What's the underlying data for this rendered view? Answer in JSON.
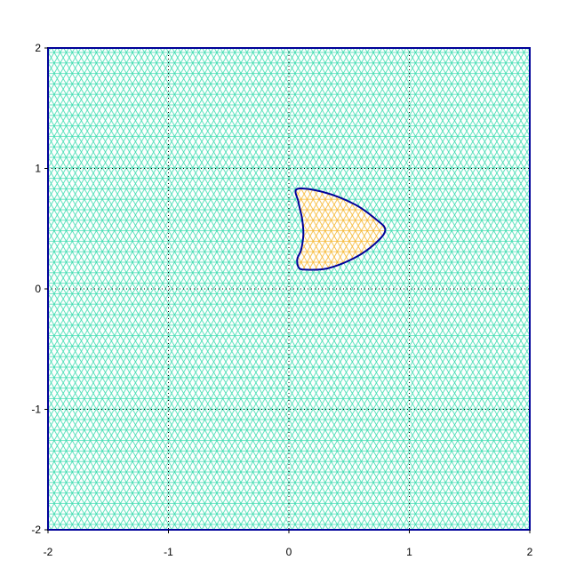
{
  "chart_data": {
    "type": "mesh",
    "title": "",
    "xlabel": "",
    "ylabel": "",
    "xlim": [
      -2,
      2
    ],
    "ylim": [
      -2,
      2
    ],
    "x_ticks": [
      "-2",
      "-1",
      "0",
      "1",
      "2"
    ],
    "y_ticks": [
      "-2",
      "-1",
      "0",
      "1",
      "2"
    ],
    "grid": true,
    "grid_style": "dotted",
    "outer_region": {
      "shape": "square",
      "x": [
        -2,
        2
      ],
      "y": [
        -2,
        2
      ],
      "mesh_color": "#3ddcb0",
      "mesh_spacing": 0.1
    },
    "inner_region": {
      "boundary": [
        [
          0.07,
          0.83
        ],
        [
          0.3,
          0.8
        ],
        [
          0.55,
          0.7
        ],
        [
          0.72,
          0.58
        ],
        [
          0.8,
          0.49
        ],
        [
          0.72,
          0.38
        ],
        [
          0.55,
          0.26
        ],
        [
          0.32,
          0.17
        ],
        [
          0.13,
          0.16
        ],
        [
          0.08,
          0.18
        ],
        [
          0.07,
          0.25
        ],
        [
          0.1,
          0.32
        ],
        [
          0.12,
          0.45
        ],
        [
          0.11,
          0.58
        ],
        [
          0.08,
          0.72
        ]
      ],
      "mesh_color": "#f5b731",
      "boundary_color": "#000099"
    },
    "frame_color": "#000099"
  }
}
